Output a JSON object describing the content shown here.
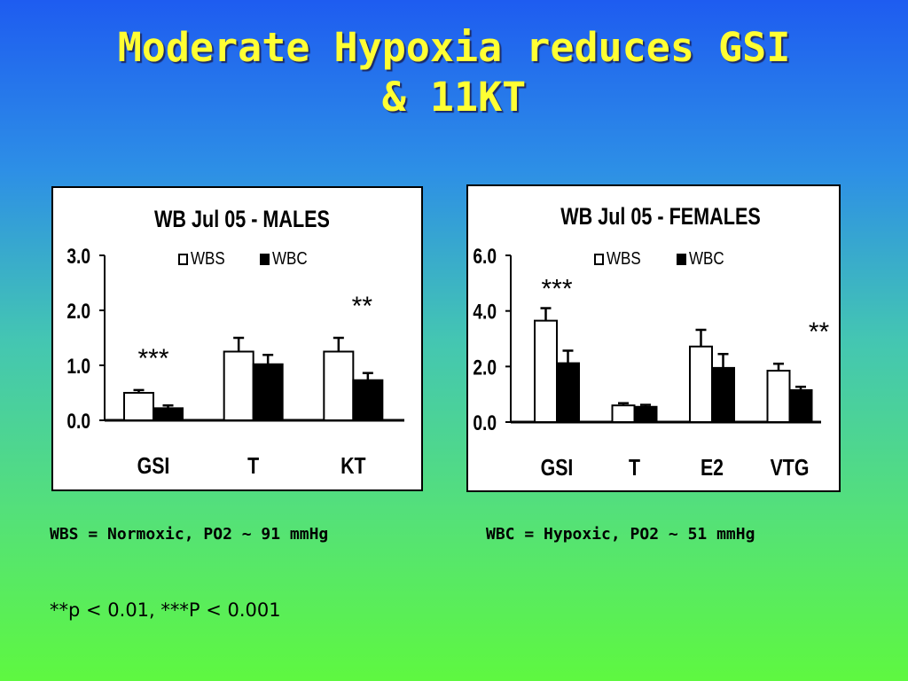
{
  "slide": {
    "title_line1": "Moderate Hypoxia reduces GSI",
    "title_line2": "& 11KT",
    "note_wbs": "WBS = Normoxic, PO2 ~ 91 mmHg",
    "note_wbc": "WBC = Hypoxic, PO2 ~ 51 mmHg",
    "pvalues": "**p < 0.01, ***P < 0.001"
  },
  "chart_data": [
    {
      "type": "bar",
      "title": "WB Jul 05 - MALES",
      "categories": [
        "GSI",
        "T",
        "KT"
      ],
      "series": [
        {
          "name": "WBS",
          "color": "#ffffff",
          "values": [
            0.5,
            1.25,
            1.25
          ],
          "errors": [
            0.05,
            0.25,
            0.25
          ]
        },
        {
          "name": "WBC",
          "color": "#000000",
          "values": [
            0.22,
            1.02,
            0.73
          ],
          "errors": [
            0.05,
            0.17,
            0.13
          ]
        }
      ],
      "yticks": [
        "0.0",
        "1.0",
        "2.0",
        "3.0"
      ],
      "ylim": [
        0,
        3
      ],
      "significance": [
        "***",
        "",
        "**"
      ],
      "legend": "top"
    },
    {
      "type": "bar",
      "title": "WB Jul 05 - FEMALES",
      "categories": [
        "GSI",
        "T",
        "E2",
        "VTG"
      ],
      "series": [
        {
          "name": "WBS",
          "color": "#ffffff",
          "values": [
            3.65,
            0.6,
            2.72,
            1.85
          ],
          "errors": [
            0.45,
            0.08,
            0.6,
            0.25
          ]
        },
        {
          "name": "WBC",
          "color": "#000000",
          "values": [
            2.12,
            0.55,
            1.95,
            1.15
          ],
          "errors": [
            0.45,
            0.07,
            0.5,
            0.12
          ]
        }
      ],
      "yticks": [
        "0.0",
        "2.0",
        "4.0",
        "6.0"
      ],
      "ylim": [
        0,
        6
      ],
      "significance": [
        "***",
        "",
        "",
        "**"
      ],
      "legend": "top"
    }
  ]
}
